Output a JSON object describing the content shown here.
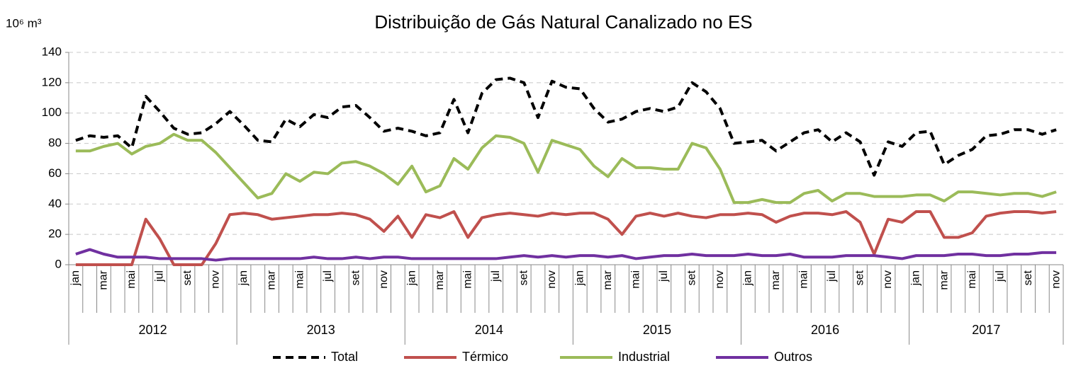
{
  "chart_data": {
    "type": "line",
    "title": "Distribuição de Gás Natural Canalizado no ES",
    "y_axis_label": "10⁶ m³",
    "categories": [
      "jan",
      null,
      "mar",
      null,
      "mai",
      null,
      "jul",
      null,
      "set",
      null,
      "nov",
      null,
      "jan",
      null,
      "mar",
      null,
      "mai",
      null,
      "jul",
      null,
      "set",
      null,
      "nov",
      null,
      "jan",
      null,
      "mar",
      null,
      "mai",
      null,
      "jul",
      null,
      "set",
      null,
      "nov",
      null,
      "jan",
      null,
      "mar",
      null,
      "mai",
      null,
      "jul",
      null,
      "set",
      null,
      "nov",
      null,
      "jan",
      null,
      "mar",
      null,
      "mai",
      null,
      "jul",
      null,
      "set",
      null,
      "nov",
      null,
      "jan",
      null,
      "mar",
      null,
      "mai",
      null,
      "jul",
      null,
      "set",
      null,
      "nov"
    ],
    "years": [
      "2012",
      "2013",
      "2014",
      "2015",
      "2016",
      "2017"
    ],
    "ylim": [
      0,
      140
    ],
    "yticks": [
      0,
      20,
      40,
      60,
      80,
      100,
      120,
      140
    ],
    "grid": true,
    "legend": "bottom",
    "series": [
      {
        "name": "Total",
        "color": "#000000",
        "dash": true,
        "values": [
          82,
          85,
          84,
          85,
          77,
          111,
          101,
          90,
          86,
          87,
          93,
          101,
          92,
          82,
          81,
          96,
          91,
          99,
          97,
          104,
          105,
          97,
          88,
          90,
          88,
          85,
          87,
          109,
          87,
          113,
          122,
          123,
          120,
          97,
          121,
          117,
          116,
          103,
          94,
          96,
          101,
          103,
          101,
          104,
          120,
          114,
          103,
          80,
          81,
          82,
          75,
          81,
          87,
          89,
          81,
          87,
          81,
          59,
          81,
          78,
          87,
          88,
          66,
          72,
          76,
          85,
          86,
          89,
          89,
          86,
          89
        ]
      },
      {
        "name": "Térmico",
        "color": "#c0504d",
        "dash": false,
        "values": [
          0,
          0,
          0,
          0,
          0,
          30,
          17,
          0,
          0,
          0,
          14,
          33,
          34,
          33,
          30,
          31,
          32,
          33,
          33,
          34,
          33,
          30,
          22,
          32,
          18,
          33,
          31,
          35,
          18,
          31,
          33,
          34,
          33,
          32,
          34,
          33,
          34,
          34,
          30,
          20,
          32,
          34,
          32,
          34,
          32,
          31,
          33,
          33,
          34,
          33,
          28,
          32,
          34,
          34,
          33,
          35,
          28,
          7,
          30,
          28,
          35,
          35,
          18,
          18,
          21,
          32,
          34,
          35,
          35,
          34,
          35
        ]
      },
      {
        "name": "Industrial",
        "color": "#9bbb59",
        "dash": false,
        "values": [
          75,
          75,
          78,
          80,
          73,
          78,
          80,
          86,
          82,
          82,
          74,
          64,
          54,
          44,
          47,
          60,
          55,
          61,
          60,
          67,
          68,
          65,
          60,
          53,
          65,
          48,
          52,
          70,
          63,
          77,
          85,
          84,
          80,
          61,
          82,
          79,
          76,
          65,
          58,
          70,
          64,
          64,
          63,
          63,
          80,
          77,
          63,
          41,
          41,
          43,
          41,
          41,
          47,
          49,
          42,
          47,
          47,
          45,
          45,
          45,
          46,
          46,
          42,
          48,
          48,
          47,
          46,
          47,
          47,
          45,
          48
        ]
      },
      {
        "name": "Outros",
        "color": "#7030a0",
        "dash": false,
        "values": [
          7,
          10,
          7,
          5,
          5,
          5,
          4,
          4,
          4,
          4,
          3,
          4,
          4,
          4,
          4,
          4,
          4,
          5,
          4,
          4,
          5,
          4,
          5,
          5,
          4,
          4,
          4,
          4,
          4,
          4,
          4,
          5,
          6,
          5,
          6,
          5,
          6,
          6,
          5,
          6,
          4,
          5,
          6,
          6,
          7,
          6,
          6,
          6,
          7,
          6,
          6,
          7,
          5,
          5,
          5,
          6,
          6,
          6,
          5,
          4,
          6,
          6,
          6,
          7,
          7,
          6,
          6,
          7,
          7,
          8,
          8
        ]
      }
    ]
  }
}
